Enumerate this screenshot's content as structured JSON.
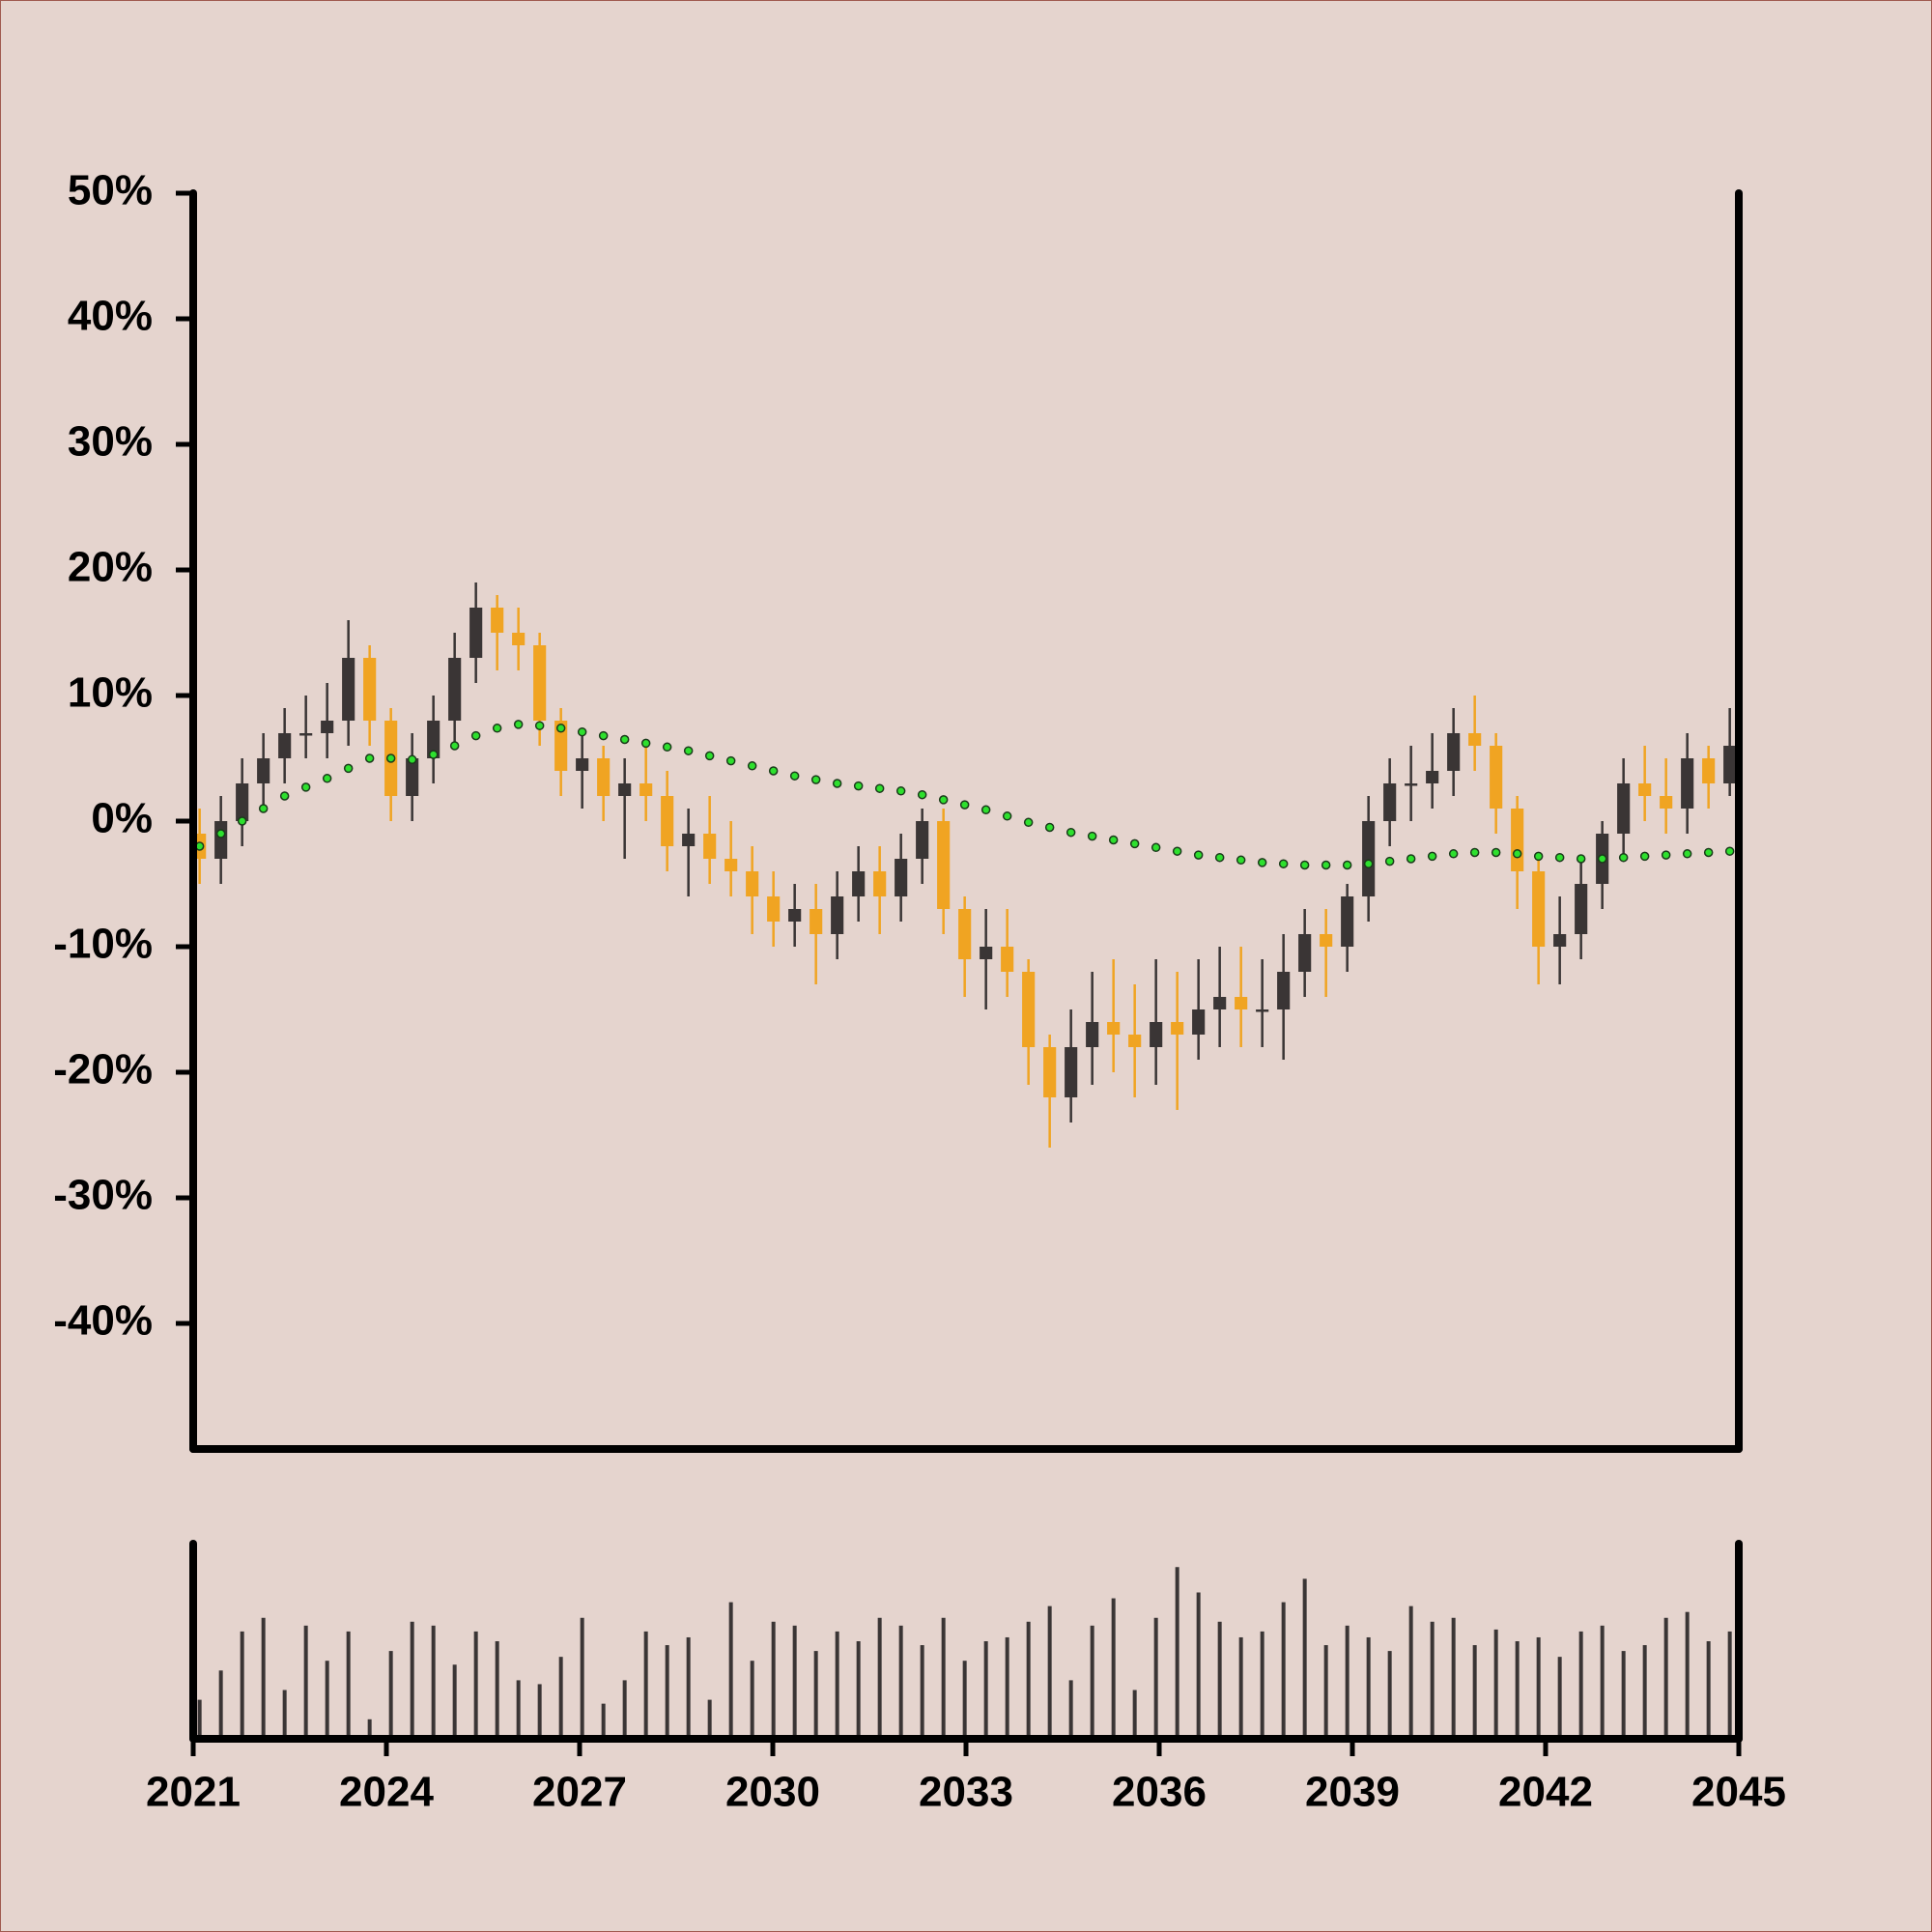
{
  "chart_data": {
    "type": "candlestick",
    "x": [
      2021.1,
      2021.43,
      2021.76,
      2022.09,
      2022.42,
      2022.75,
      2023.08,
      2023.41,
      2023.74,
      2024.07,
      2024.4,
      2024.73,
      2025.06,
      2025.39,
      2025.72,
      2026.05,
      2026.38,
      2026.71,
      2027.04,
      2027.37,
      2027.7,
      2028.03,
      2028.36,
      2028.69,
      2029.02,
      2029.35,
      2029.68,
      2030.01,
      2030.34,
      2030.67,
      2031.0,
      2031.33,
      2031.66,
      2031.99,
      2032.32,
      2032.65,
      2032.98,
      2033.31,
      2033.64,
      2033.97,
      2034.3,
      2034.63,
      2034.96,
      2035.29,
      2035.62,
      2035.95,
      2036.28,
      2036.61,
      2036.94,
      2037.27,
      2037.6,
      2037.93,
      2038.26,
      2038.59,
      2038.92,
      2039.25,
      2039.58,
      2039.91,
      2040.24,
      2040.57,
      2040.9,
      2041.23,
      2041.56,
      2041.89,
      2042.22,
      2042.55,
      2042.88,
      2043.21,
      2043.54,
      2043.87,
      2044.2,
      2044.53,
      2044.86
    ],
    "open": [
      -1,
      -3,
      0,
      3,
      5,
      7,
      7,
      8,
      13,
      8,
      2,
      5,
      8,
      13,
      17,
      15,
      14,
      8,
      4,
      5,
      2,
      3,
      2,
      -2,
      -1,
      -3,
      -4,
      -6,
      -8,
      -7,
      -9,
      -6,
      -4,
      -6,
      -3,
      0,
      -7,
      -11,
      -10,
      -12,
      -18,
      -22,
      -18,
      -16,
      -17,
      -18,
      -16,
      -17,
      -15,
      -14,
      -15,
      -15,
      -12,
      -9,
      -10,
      -6,
      0,
      3,
      3,
      4,
      7,
      6,
      1,
      -4,
      -10,
      -9,
      -5,
      -1,
      3,
      2,
      1,
      5,
      3
    ],
    "high": [
      1,
      2,
      5,
      7,
      9,
      10,
      11,
      16,
      14,
      9,
      7,
      10,
      15,
      19,
      18,
      17,
      15,
      9,
      7,
      6,
      5,
      6,
      4,
      1,
      2,
      0,
      -2,
      -4,
      -5,
      -5,
      -4,
      -2,
      -2,
      -1,
      1,
      1,
      -6,
      -7,
      -7,
      -11,
      -17,
      -15,
      -12,
      -11,
      -13,
      -11,
      -12,
      -11,
      -10,
      -10,
      -11,
      -9,
      -7,
      -7,
      -5,
      2,
      5,
      6,
      7,
      9,
      10,
      7,
      2,
      -3,
      -6,
      -3,
      0,
      5,
      6,
      5,
      7,
      6,
      9
    ],
    "low": [
      -5,
      -5,
      -2,
      1,
      3,
      5,
      5,
      6,
      6,
      0,
      0,
      3,
      6,
      11,
      12,
      12,
      6,
      2,
      1,
      0,
      -3,
      0,
      -4,
      -6,
      -5,
      -6,
      -9,
      -10,
      -10,
      -13,
      -11,
      -8,
      -9,
      -8,
      -5,
      -9,
      -14,
      -15,
      -14,
      -21,
      -26,
      -24,
      -21,
      -20,
      -22,
      -21,
      -23,
      -19,
      -18,
      -18,
      -18,
      -19,
      -14,
      -14,
      -12,
      -8,
      -2,
      0,
      1,
      2,
      4,
      -1,
      -7,
      -13,
      -13,
      -11,
      -7,
      -3,
      0,
      -1,
      -1,
      1,
      2
    ],
    "close": [
      -3,
      0,
      3,
      5,
      7,
      7,
      8,
      13,
      8,
      2,
      5,
      8,
      13,
      17,
      15,
      14,
      8,
      4,
      5,
      2,
      3,
      2,
      -2,
      -1,
      -3,
      -4,
      -6,
      -8,
      -7,
      -9,
      -6,
      -4,
      -6,
      -3,
      0,
      -7,
      -11,
      -10,
      -12,
      -18,
      -22,
      -18,
      -16,
      -17,
      -18,
      -16,
      -17,
      -15,
      -14,
      -15,
      -15,
      -12,
      -9,
      -10,
      -6,
      0,
      3,
      3,
      4,
      7,
      6,
      1,
      -4,
      -10,
      -9,
      -5,
      -1,
      3,
      2,
      1,
      5,
      3,
      6
    ],
    "up_color": "#3a3535",
    "down_color": "#f0a422",
    "ma": {
      "color": "#2ee02e",
      "values": [
        -2,
        -1,
        0,
        1,
        2,
        2.7,
        3.4,
        4.2,
        5,
        5,
        4.9,
        5.3,
        6,
        6.8,
        7.4,
        7.7,
        7.6,
        7.4,
        7.1,
        6.8,
        6.5,
        6.2,
        5.9,
        5.6,
        5.2,
        4.8,
        4.4,
        4,
        3.6,
        3.3,
        3,
        2.8,
        2.6,
        2.4,
        2.1,
        1.7,
        1.3,
        0.9,
        0.4,
        -0.1,
        -0.5,
        -0.9,
        -1.2,
        -1.5,
        -1.8,
        -2.1,
        -2.4,
        -2.7,
        -2.9,
        -3.1,
        -3.3,
        -3.4,
        -3.5,
        -3.5,
        -3.5,
        -3.4,
        -3.2,
        -3,
        -2.8,
        -2.6,
        -2.5,
        -2.5,
        -2.6,
        -2.8,
        -2.9,
        -3,
        -3,
        -2.9,
        -2.8,
        -2.7,
        -2.6,
        -2.5,
        -2.4
      ]
    },
    "volume": {
      "color": "#3a3535",
      "ylim": [
        0,
        100
      ],
      "values": [
        20,
        35,
        55,
        62,
        25,
        58,
        40,
        55,
        10,
        45,
        60,
        58,
        38,
        55,
        50,
        30,
        28,
        42,
        62,
        18,
        30,
        55,
        48,
        52,
        20,
        70,
        40,
        60,
        58,
        45,
        55,
        50,
        62,
        58,
        48,
        62,
        40,
        50,
        52,
        60,
        68,
        30,
        58,
        72,
        25,
        62,
        88,
        75,
        60,
        52,
        55,
        70,
        82,
        48,
        58,
        52,
        45,
        68,
        60,
        62,
        48,
        56,
        50,
        52,
        42,
        55,
        58,
        45,
        48,
        62,
        65,
        50,
        55
      ]
    },
    "xlim": [
      2021,
      2045
    ],
    "xticks": [
      2021,
      2024,
      2027,
      2030,
      2033,
      2036,
      2039,
      2042,
      2045
    ],
    "ylim": [
      -50,
      50
    ],
    "yticks": [
      {
        "value": 50,
        "label": "50%"
      },
      {
        "value": 40,
        "label": "40%"
      },
      {
        "value": 30,
        "label": "30%"
      },
      {
        "value": 20,
        "label": "20%"
      },
      {
        "value": 10,
        "label": "10%"
      },
      {
        "value": 0,
        "label": "0%"
      },
      {
        "value": -10,
        "label": "-10%"
      },
      {
        "value": -20,
        "label": "-20%"
      },
      {
        "value": -30,
        "label": "-30%"
      },
      {
        "value": -40,
        "label": "-40%"
      }
    ]
  }
}
